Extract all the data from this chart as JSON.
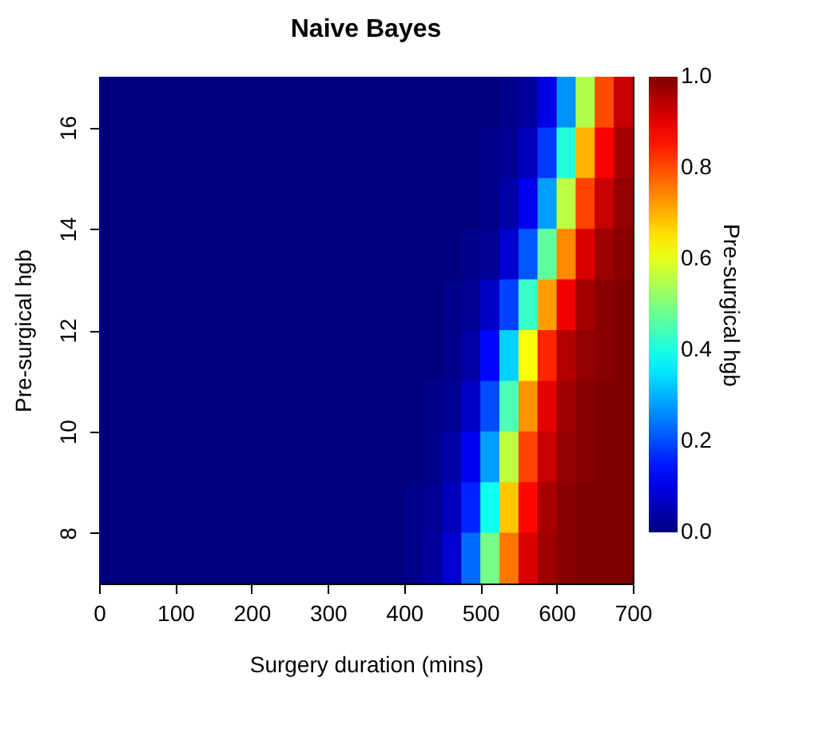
{
  "chart_data": {
    "type": "heatmap",
    "title": "Naive Bayes",
    "xlabel": "Surgery duration (mins)",
    "ylabel": "Pre-surgical hgb",
    "clabel": "Pre-surgical hgb",
    "x": [
      12.5,
      37.5,
      62.5,
      87.5,
      112.5,
      137.5,
      162.5,
      187.5,
      212.5,
      237.5,
      262.5,
      287.5,
      312.5,
      337.5,
      362.5,
      387.5,
      412.5,
      437.5,
      462.5,
      487.5,
      512.5,
      537.5,
      562.5,
      587.5,
      612.5,
      637.5,
      662.5,
      687.5
    ],
    "y": [
      16.5,
      15.5,
      14.5,
      13.5,
      12.5,
      11.5,
      10.5,
      9.5,
      8.5,
      7.5
    ],
    "cells": [
      [
        0,
        0,
        0,
        0,
        0,
        0,
        0,
        0,
        0,
        0,
        0,
        0,
        0,
        0,
        0,
        0,
        0,
        0,
        0,
        0,
        0,
        0.01,
        0.03,
        0.1,
        0.27,
        0.55,
        0.8,
        0.93
      ],
      [
        0,
        0,
        0,
        0,
        0,
        0,
        0,
        0,
        0,
        0,
        0,
        0,
        0,
        0,
        0,
        0,
        0,
        0,
        0,
        0,
        0.01,
        0.02,
        0.06,
        0.18,
        0.41,
        0.7,
        0.88,
        0.96
      ],
      [
        0,
        0,
        0,
        0,
        0,
        0,
        0,
        0,
        0,
        0,
        0,
        0,
        0,
        0,
        0,
        0,
        0,
        0,
        0,
        0,
        0.01,
        0.04,
        0.11,
        0.28,
        0.56,
        0.81,
        0.93,
        0.98
      ],
      [
        0,
        0,
        0,
        0,
        0,
        0,
        0,
        0,
        0,
        0,
        0,
        0,
        0,
        0,
        0,
        0,
        0,
        0,
        0,
        0.01,
        0.02,
        0.08,
        0.21,
        0.47,
        0.74,
        0.91,
        0.97,
        0.99
      ],
      [
        0,
        0,
        0,
        0,
        0,
        0,
        0,
        0,
        0,
        0,
        0,
        0,
        0,
        0,
        0,
        0,
        0,
        0,
        0.01,
        0.02,
        0.07,
        0.19,
        0.43,
        0.72,
        0.89,
        0.96,
        0.99,
        1
      ],
      [
        0,
        0,
        0,
        0,
        0,
        0,
        0,
        0,
        0,
        0,
        0,
        0,
        0,
        0,
        0,
        0,
        0,
        0,
        0.01,
        0.04,
        0.13,
        0.33,
        0.62,
        0.84,
        0.95,
        0.98,
        0.99,
        1
      ],
      [
        0,
        0,
        0,
        0,
        0,
        0,
        0,
        0,
        0,
        0,
        0,
        0,
        0,
        0,
        0,
        0,
        0,
        0.01,
        0.02,
        0.07,
        0.2,
        0.45,
        0.73,
        0.9,
        0.97,
        0.99,
        1,
        1
      ],
      [
        0,
        0,
        0,
        0,
        0,
        0,
        0,
        0,
        0,
        0,
        0,
        0,
        0,
        0,
        0,
        0,
        0,
        0.01,
        0.04,
        0.11,
        0.28,
        0.56,
        0.81,
        0.93,
        0.98,
        0.99,
        1,
        1
      ],
      [
        0,
        0,
        0,
        0,
        0,
        0,
        0,
        0,
        0,
        0,
        0,
        0,
        0,
        0,
        0,
        0,
        0.01,
        0.02,
        0.06,
        0.16,
        0.39,
        0.68,
        0.87,
        0.96,
        0.99,
        1,
        1,
        1
      ],
      [
        0,
        0,
        0,
        0,
        0,
        0,
        0,
        0,
        0,
        0,
        0,
        0,
        0,
        0,
        0,
        0,
        0.01,
        0.03,
        0.08,
        0.23,
        0.49,
        0.76,
        0.91,
        0.97,
        0.99,
        1,
        1,
        1
      ]
    ],
    "colors": [
      "#00007f",
      "#0000ff",
      "#007fff",
      "#00ffff",
      "#7fff7f",
      "#ffff00",
      "#ff7f00",
      "#ff0000",
      "#7f0000"
    ],
    "clim": [
      0,
      1
    ],
    "cticks": [
      {
        "value": 0,
        "label": "0.0"
      },
      {
        "value": 0.2,
        "label": "0.2"
      },
      {
        "value": 0.4,
        "label": "0.4"
      },
      {
        "value": 0.6,
        "label": "0.6"
      },
      {
        "value": 0.8,
        "label": "0.8"
      },
      {
        "value": 1,
        "label": "1.0"
      }
    ],
    "xlim": [
      0,
      700
    ],
    "xticks": [
      0,
      100,
      200,
      300,
      400,
      500,
      600,
      700
    ],
    "ylim": [
      7,
      17
    ],
    "yticks": [
      8,
      10,
      12,
      14,
      16
    ],
    "grid": false
  }
}
